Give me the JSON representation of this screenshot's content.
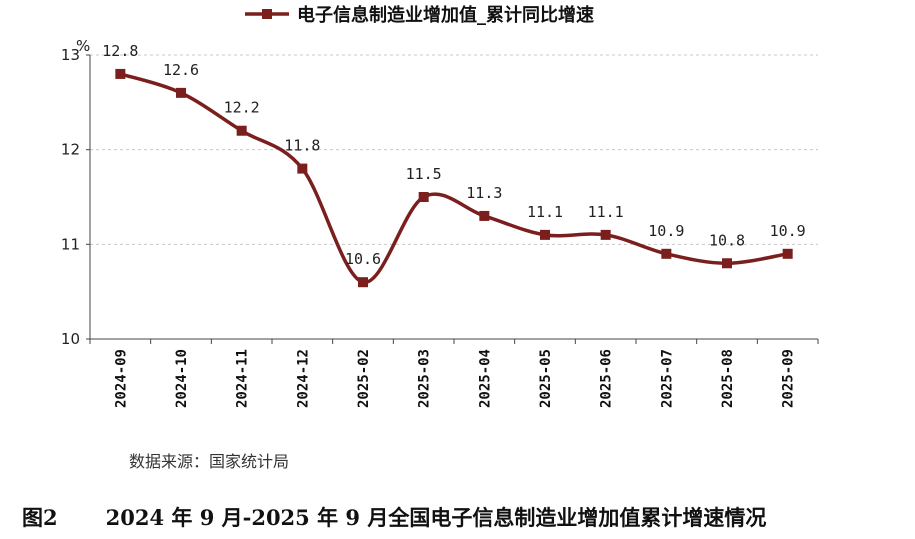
{
  "chart_data": {
    "type": "line",
    "legend": "电子信息制造业增加值_累计同比增速",
    "legend_position": "top",
    "unit_label": "%",
    "categories": [
      "2024-09",
      "2024-10",
      "2024-11",
      "2024-12",
      "2025-02",
      "2025-03",
      "2025-04",
      "2025-05",
      "2025-06",
      "2025-07",
      "2025-08",
      "2025-09"
    ],
    "series": [
      {
        "name": "电子信息制造业增加值_累计同比增速",
        "values": [
          12.8,
          12.6,
          12.2,
          11.8,
          10.6,
          11.5,
          11.3,
          11.1,
          11.1,
          10.9,
          10.8,
          10.9
        ],
        "labels": [
          "12.8",
          "12.6",
          "12.2",
          "11.8",
          "10.6",
          "11.5",
          "11.3",
          "11.1",
          "11.1",
          "10.9",
          "10.8",
          "10.9"
        ]
      }
    ],
    "yticks": [
      10,
      11,
      12,
      13
    ],
    "ylim": [
      10,
      13
    ],
    "grid": true,
    "line_color": "#7b1e1e"
  },
  "footer": {
    "source": "数据来源：国家统计局",
    "figure_num": "图2",
    "caption": "2024 年 9 月-2025 年 9 月全国电子信息制造业增加值累计增速情况"
  }
}
